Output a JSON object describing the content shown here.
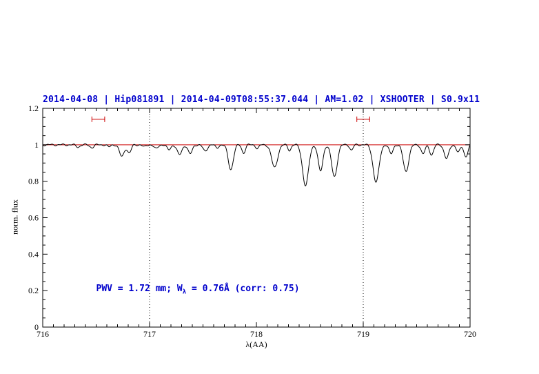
{
  "page": {
    "background": "#ffffff"
  },
  "chart_data": {
    "type": "line",
    "title": "2014-04-08 | Hip081891 | 2014-04-09T08:55:37.044 | AM=1.02 | XSHOOTER | S0.9x11",
    "xlabel": "λ(AA)",
    "ylabel": "norm. flux",
    "xlim": [
      716,
      720
    ],
    "ylim": [
      0,
      1.2
    ],
    "x_major_ticks": [
      716,
      717,
      718,
      719,
      720
    ],
    "x_tick_labels": [
      "716",
      "717",
      "718",
      "719",
      "720"
    ],
    "x_minor_step": 0.1,
    "y_major_ticks": [
      0,
      0.2,
      0.4,
      0.6,
      0.8,
      1,
      1.2
    ],
    "y_tick_labels": [
      "0",
      "0.2",
      "0.4",
      "0.6",
      "0.8",
      "1",
      "1.2"
    ],
    "y_minor_step": 0.05,
    "grid": "off",
    "dotted_vlines": [
      717,
      719
    ],
    "continuum_level": 1.0,
    "colors": {
      "spectrum": "#000000",
      "continuum": "#cc0000",
      "title": "#0000cc",
      "annotation": "#0000cc",
      "marker": "#cc0000",
      "axis": "#000000"
    },
    "spectrum_absorption_lines": [
      [
        716.33,
        0.012,
        0.018
      ],
      [
        716.46,
        0.015,
        0.018
      ],
      [
        716.62,
        0.012,
        0.015
      ],
      [
        716.74,
        0.065,
        0.022
      ],
      [
        716.81,
        0.045,
        0.018
      ],
      [
        716.95,
        0.012,
        0.015
      ],
      [
        717.06,
        0.022,
        0.018
      ],
      [
        717.18,
        0.028,
        0.018
      ],
      [
        717.28,
        0.055,
        0.022
      ],
      [
        717.38,
        0.05,
        0.02
      ],
      [
        717.52,
        0.035,
        0.02
      ],
      [
        717.63,
        0.018,
        0.015
      ],
      [
        717.76,
        0.135,
        0.024
      ],
      [
        717.88,
        0.045,
        0.016
      ],
      [
        718.01,
        0.02,
        0.015
      ],
      [
        718.17,
        0.125,
        0.028
      ],
      [
        718.31,
        0.03,
        0.015
      ],
      [
        718.46,
        0.225,
        0.028
      ],
      [
        718.6,
        0.145,
        0.022
      ],
      [
        718.73,
        0.175,
        0.026
      ],
      [
        718.89,
        0.03,
        0.015
      ],
      [
        719.12,
        0.205,
        0.028
      ],
      [
        719.26,
        0.05,
        0.018
      ],
      [
        719.4,
        0.145,
        0.026
      ],
      [
        719.56,
        0.05,
        0.018
      ],
      [
        719.64,
        0.055,
        0.018
      ],
      [
        719.78,
        0.075,
        0.022
      ],
      [
        719.89,
        0.04,
        0.018
      ],
      [
        719.96,
        0.065,
        0.018
      ]
    ],
    "noise_amplitude": 0.0035,
    "range_markers": {
      "y": 1.14,
      "intervals": [
        [
          716.46,
          716.58
        ],
        [
          718.94,
          719.06
        ]
      ]
    },
    "annotation": {
      "prefix": "PWV = 1.72 mm; W",
      "sub": "λ",
      "suffix": " = 0.76Å (corr: 0.75)",
      "x": 716.5,
      "y": 0.2
    }
  }
}
